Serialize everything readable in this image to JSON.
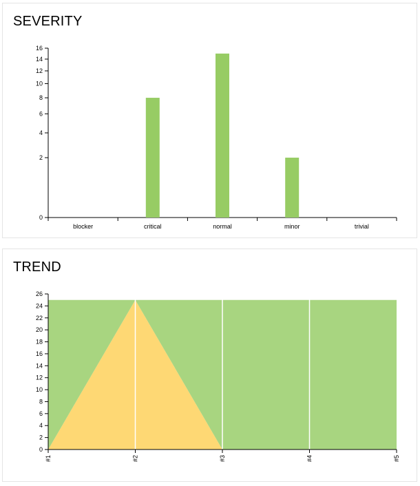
{
  "widgets": [
    {
      "title": "SEVERITY",
      "chart_data": {
        "type": "bar",
        "categories": [
          "blocker",
          "critical",
          "normal",
          "minor",
          "trivial"
        ],
        "values": [
          0,
          8,
          15,
          2,
          0
        ],
        "yticks": [
          0,
          2,
          4,
          6,
          8,
          10,
          12,
          14,
          16
        ],
        "ylim": [
          0,
          16
        ],
        "yscale": "sqrt",
        "bar_color": "#97cc64"
      }
    },
    {
      "title": "TREND",
      "chart_data": {
        "type": "area",
        "stacked": true,
        "x": [
          "#1",
          "#2",
          "#3",
          "#4",
          "#5"
        ],
        "series": [
          {
            "values": [
              0,
              25,
              0,
              0,
              0
            ],
            "color": "#fed874"
          },
          {
            "values": [
              25,
              0,
              25,
              25,
              25
            ],
            "color": "#a8d580"
          }
        ],
        "yticks": [
          0,
          2,
          4,
          6,
          8,
          10,
          12,
          14,
          16,
          18,
          20,
          22,
          24,
          26
        ],
        "ylim": [
          0,
          26
        ],
        "grid": "vertical"
      }
    }
  ]
}
